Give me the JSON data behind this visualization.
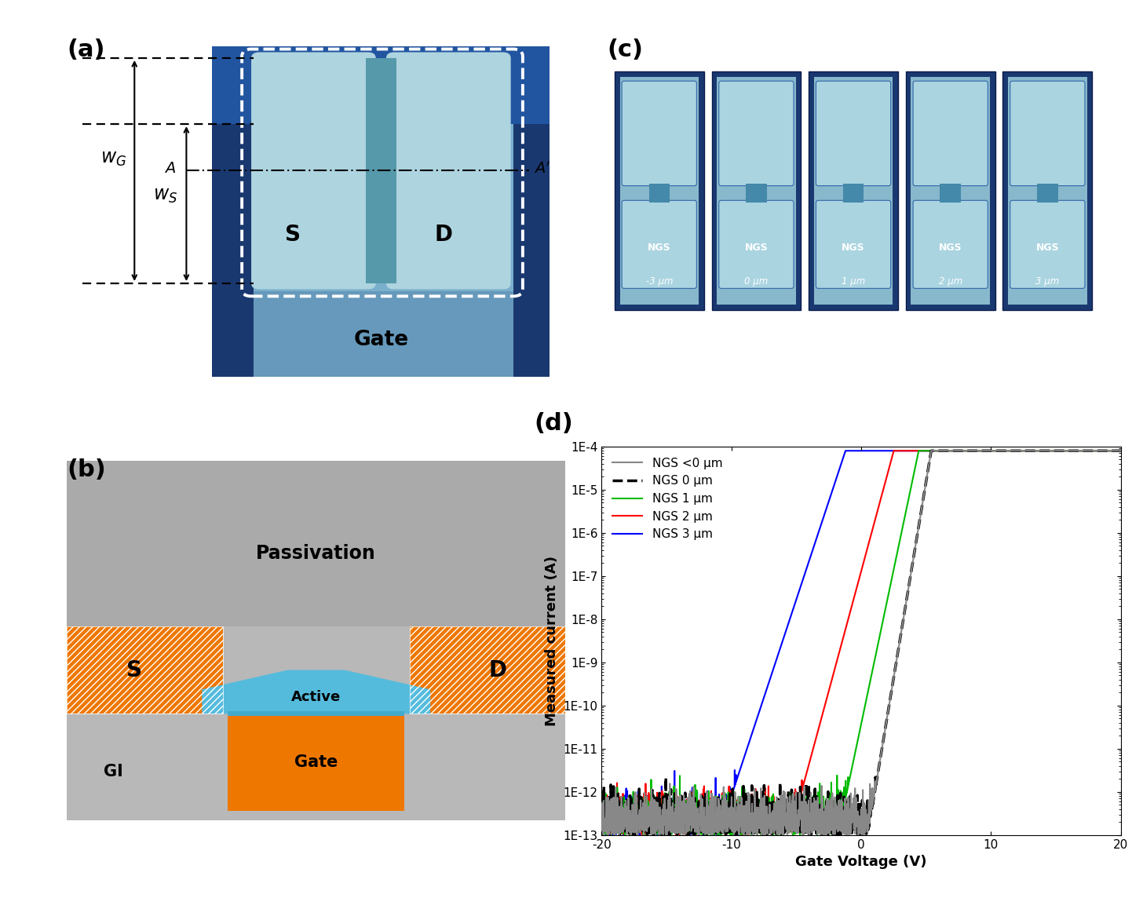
{
  "panel_labels": [
    "(a)",
    "(b)",
    "(c)",
    "(d)"
  ],
  "panel_label_fontsize": 22,
  "panel_label_weight": "bold",
  "plot_d": {
    "xlabel": "Gate Voltage (V)",
    "ylabel": "Measured current (A)",
    "xlim": [
      -20,
      20
    ],
    "yticks_labels": [
      "1E-13",
      "1E-12",
      "1E-11",
      "1E-10",
      "1E-9",
      "1E-8",
      "1E-7",
      "1E-6",
      "1E-5",
      "1E-4"
    ],
    "yticks_vals": [
      1e-13,
      1e-12,
      1e-11,
      1e-10,
      1e-09,
      1e-08,
      1e-07,
      1e-06,
      1e-05,
      0.0001
    ],
    "xticks": [
      -20,
      -10,
      0,
      10,
      20
    ],
    "legend_labels": [
      "NGS <0 μm",
      "NGS 0 μm",
      "NGS 1 μm",
      "NGS 2 μm",
      "NGS 3 μm"
    ],
    "legend_colors": [
      "#888888",
      "#000000",
      "#00bb00",
      "#ff0000",
      "#0000ff"
    ],
    "legend_styles": [
      "solid",
      "dashed",
      "solid",
      "solid",
      "solid"
    ],
    "legend_linewidths": [
      1.5,
      2.5,
      1.5,
      1.5,
      1.5
    ],
    "curves": [
      {
        "vth": 0.5,
        "ss": 0.55,
        "ioff": 1e-13,
        "ion": 8e-05,
        "color": "#888888",
        "style": "solid",
        "lw": 1.5
      },
      {
        "vth": 0.5,
        "ss": 0.55,
        "ioff": 1e-13,
        "ion": 8e-05,
        "color": "#000000",
        "style": "dashed",
        "lw": 2.5
      },
      {
        "vth": -1.8,
        "ss": 0.7,
        "ioff": 1e-13,
        "ion": 8e-05,
        "color": "#00bb00",
        "style": "solid",
        "lw": 1.5
      },
      {
        "vth": -5.5,
        "ss": 0.9,
        "ioff": 1e-13,
        "ion": 8e-05,
        "color": "#ff0000",
        "style": "solid",
        "lw": 1.5
      },
      {
        "vth": -11.0,
        "ss": 1.1,
        "ioff": 1e-13,
        "ion": 8e-05,
        "color": "#0000ff",
        "style": "solid",
        "lw": 1.5
      }
    ],
    "axis_label_fontsize": 13,
    "tick_label_fontsize": 11,
    "legend_fontsize": 11
  },
  "panel_a": {
    "bg_dark_blue": "#1a3870",
    "channel_blue": "#7aafcc",
    "gate_bottom_blue": "#3a6aaa",
    "pad_color": "#aed4e0",
    "pad_edge_color": "#5599aa",
    "s_d_color": "black",
    "gate_text_color": "black",
    "arrow_color": "black",
    "wg_label": "$w_G$",
    "ws_label": "$w_S$"
  },
  "panel_b": {
    "passiv_color": "#aaaaaa",
    "gi_color": "#b8b8b8",
    "gate_color": "#ee7700",
    "active_color": "#55bbdd",
    "sd_fill": "#ee7700",
    "sd_hatch_color": "white",
    "passiv_label": "Passivation",
    "gi_label": "GI",
    "gate_label": "Gate",
    "active_label": "Active",
    "s_label": "S",
    "d_label": "D"
  },
  "panel_c": {
    "outer_blue": "#1a3870",
    "inner_bg": "#88b8cc",
    "pad_color": "#aad4e0",
    "pad_edge": "#3366aa",
    "channel_color": "#4488aa",
    "labels": [
      "-3 μm",
      "0 μm",
      "1 μm",
      "2 μm",
      "3 μm"
    ]
  }
}
